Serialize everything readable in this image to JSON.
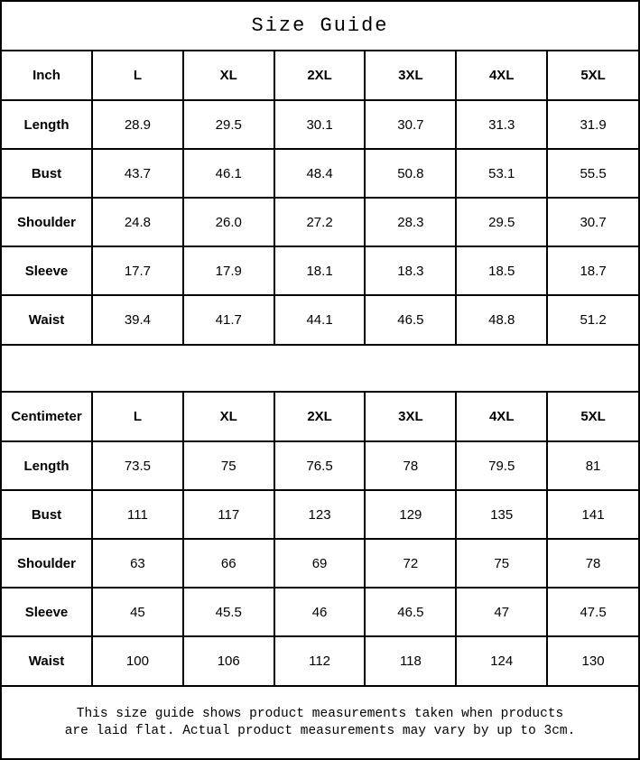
{
  "title": "Size Guide",
  "colors": {
    "border": "#000000",
    "background": "#ffffff",
    "text": "#000000"
  },
  "tables": {
    "inch": {
      "unit_label": "Inch",
      "sizes": [
        "L",
        "XL",
        "2XL",
        "3XL",
        "4XL",
        "5XL"
      ],
      "rows": [
        {
          "label": "Length",
          "values": [
            "28.9",
            "29.5",
            "30.1",
            "30.7",
            "31.3",
            "31.9"
          ]
        },
        {
          "label": "Bust",
          "values": [
            "43.7",
            "46.1",
            "48.4",
            "50.8",
            "53.1",
            "55.5"
          ]
        },
        {
          "label": "Shoulder",
          "values": [
            "24.8",
            "26.0",
            "27.2",
            "28.3",
            "29.5",
            "30.7"
          ]
        },
        {
          "label": "Sleeve",
          "values": [
            "17.7",
            "17.9",
            "18.1",
            "18.3",
            "18.5",
            "18.7"
          ]
        },
        {
          "label": "Waist",
          "values": [
            "39.4",
            "41.7",
            "44.1",
            "46.5",
            "48.8",
            "51.2"
          ]
        }
      ]
    },
    "centimeter": {
      "unit_label": "Centimeter",
      "sizes": [
        "L",
        "XL",
        "2XL",
        "3XL",
        "4XL",
        "5XL"
      ],
      "rows": [
        {
          "label": "Length",
          "values": [
            "73.5",
            "75",
            "76.5",
            "78",
            "79.5",
            "81"
          ]
        },
        {
          "label": "Bust",
          "values": [
            "111",
            "117",
            "123",
            "129",
            "135",
            "141"
          ]
        },
        {
          "label": "Shoulder",
          "values": [
            "63",
            "66",
            "69",
            "72",
            "75",
            "78"
          ]
        },
        {
          "label": "Sleeve",
          "values": [
            "45",
            "45.5",
            "46",
            "46.5",
            "47",
            "47.5"
          ]
        },
        {
          "label": "Waist",
          "values": [
            "100",
            "106",
            "112",
            "118",
            "124",
            "130"
          ]
        }
      ]
    }
  },
  "footer": {
    "line1": "This size guide shows product measurements taken when products",
    "line2": "are laid flat. Actual product measurements may vary by up to 3cm."
  }
}
